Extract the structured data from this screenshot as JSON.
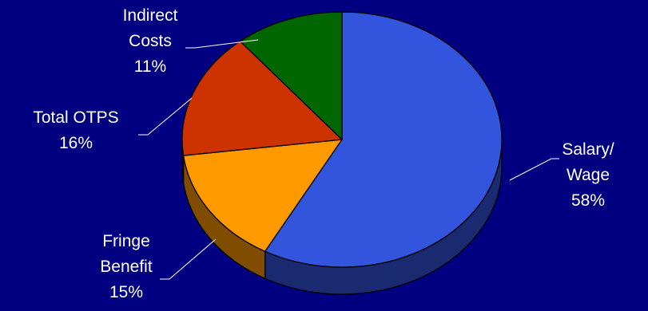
{
  "chart_data": {
    "type": "pie",
    "title": "",
    "slices": [
      {
        "name": "Salary/ Wage",
        "label_lines": [
          "Salary/",
          "Wage"
        ],
        "percent_label": "58%",
        "value": 58,
        "color": "#3355dd",
        "side_color": "#1a2a70"
      },
      {
        "name": "Fringe Benefit",
        "label_lines": [
          "Fringe",
          "Benefit"
        ],
        "percent_label": "15%",
        "value": 15,
        "color": "#ff9900",
        "side_color": "#7f4c00"
      },
      {
        "name": "Total OTPS",
        "label_lines": [
          "Total OTPS"
        ],
        "percent_label": "16%",
        "value": 16,
        "color": "#cc3300",
        "side_color": "#661900"
      },
      {
        "name": "Indirect Costs",
        "label_lines": [
          "Indirect",
          "Costs"
        ],
        "percent_label": "11%",
        "value": 11,
        "color": "#006600",
        "side_color": "#003300"
      }
    ],
    "legend": "none",
    "start_angle": "top, clockwise",
    "view": "3d"
  }
}
